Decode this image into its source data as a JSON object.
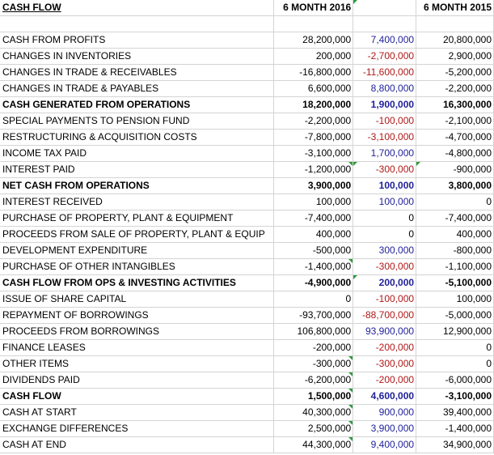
{
  "header": {
    "title": "CASH FLOW",
    "col_2016": "6 MONTH 2016",
    "col_2015": "6 MONTH 2015"
  },
  "rows": [
    {
      "label": "CASH FROM PROFITS",
      "v2016": "28,200,000",
      "diff": "7,400,000",
      "v2015": "20,800,000",
      "bold": false
    },
    {
      "label": "CHANGES IN INVENTORIES",
      "v2016": "200,000",
      "diff": "-2,700,000",
      "v2015": "2,900,000",
      "bold": false
    },
    {
      "label": "CHANGES IN TRADE & RECEIVABLES",
      "v2016": "-16,800,000",
      "diff": "-11,600,000",
      "v2015": "-5,200,000",
      "bold": false
    },
    {
      "label": "CHANGES IN TRADE & PAYABLES",
      "v2016": "6,600,000",
      "diff": "8,800,000",
      "v2015": "-2,200,000",
      "bold": false
    },
    {
      "label": "CASH GENERATED FROM OPERATIONS",
      "v2016": "18,200,000",
      "diff": "1,900,000",
      "v2015": "16,300,000",
      "bold": true
    },
    {
      "label": "SPECIAL PAYMENTS TO PENSION FUND",
      "v2016": "-2,200,000",
      "diff": "-100,000",
      "v2015": "-2,100,000",
      "bold": false
    },
    {
      "label": "RESTRUCTURING & ACQUISITION COSTS",
      "v2016": "-7,800,000",
      "diff": "-3,100,000",
      "v2015": "-4,700,000",
      "bold": false
    },
    {
      "label": "INCOME TAX PAID",
      "v2016": "-3,100,000",
      "diff": "1,700,000",
      "v2015": "-4,800,000",
      "bold": false
    },
    {
      "label": "INTEREST PAID",
      "v2016": "-1,200,000",
      "diff": "-300,000",
      "v2015": "-900,000",
      "bold": false
    },
    {
      "label": "NET CASH FROM OPERATIONS",
      "v2016": "3,900,000",
      "diff": "100,000",
      "v2015": "3,800,000",
      "bold": true
    },
    {
      "label": "INTEREST RECEIVED",
      "v2016": "100,000",
      "diff": "100,000",
      "v2015": "0",
      "bold": false
    },
    {
      "label": "PURCHASE OF PROPERTY, PLANT & EQUIPMENT",
      "v2016": "-7,400,000",
      "diff": "0",
      "v2015": "-7,400,000",
      "bold": false
    },
    {
      "label": "PROCEEDS FROM SALE OF PROPERTY, PLANT & EQUIP",
      "v2016": "400,000",
      "diff": "0",
      "v2015": "400,000",
      "bold": false
    },
    {
      "label": "DEVELOPMENT EXPENDITURE",
      "v2016": "-500,000",
      "diff": "300,000",
      "v2015": "-800,000",
      "bold": false
    },
    {
      "label": "PURCHASE OF OTHER INTANGIBLES",
      "v2016": "-1,400,000",
      "diff": "-300,000",
      "v2015": "-1,100,000",
      "bold": false
    },
    {
      "label": "CASH FLOW FROM OPS & INVESTING ACTIVITIES",
      "v2016": "-4,900,000",
      "diff": "200,000",
      "v2015": "-5,100,000",
      "bold": true
    },
    {
      "label": "ISSUE OF SHARE CAPITAL",
      "v2016": "0",
      "diff": "-100,000",
      "v2015": "100,000",
      "bold": false
    },
    {
      "label": "REPAYMENT OF BORROWINGS",
      "v2016": "-93,700,000",
      "diff": "-88,700,000",
      "v2015": "-5,000,000",
      "bold": false
    },
    {
      "label": "PROCEEDS FROM BORROWINGS",
      "v2016": "106,800,000",
      "diff": "93,900,000",
      "v2015": "12,900,000",
      "bold": false
    },
    {
      "label": "FINANCE LEASES",
      "v2016": "-200,000",
      "diff": "-200,000",
      "v2015": "0",
      "bold": false
    },
    {
      "label": "OTHER ITEMS",
      "v2016": "-300,000",
      "diff": "-300,000",
      "v2015": "0",
      "bold": false
    },
    {
      "label": "DIVIDENDS PAID",
      "v2016": "-6,200,000",
      "diff": "-200,000",
      "v2015": "-6,000,000",
      "bold": false
    },
    {
      "label": "CASH FLOW",
      "v2016": "1,500,000",
      "diff": "4,600,000",
      "v2015": "-3,100,000",
      "bold": true
    },
    {
      "label": "CASH AT START",
      "v2016": "40,300,000",
      "diff": "900,000",
      "v2015": "39,400,000",
      "bold": false
    },
    {
      "label": "EXCHANGE DIFFERENCES",
      "v2016": "2,500,000",
      "diff": "3,900,000",
      "v2015": "-1,400,000",
      "bold": false
    },
    {
      "label": "CASH AT END",
      "v2016": "44,300,000",
      "diff": "9,400,000",
      "v2015": "34,900,000",
      "bold": false
    }
  ],
  "colors": {
    "positive_diff": "#1f1f9a",
    "negative_diff": "#b01818",
    "gridline": "#d4d4d4",
    "comment_flag": "#2e9a3a"
  }
}
